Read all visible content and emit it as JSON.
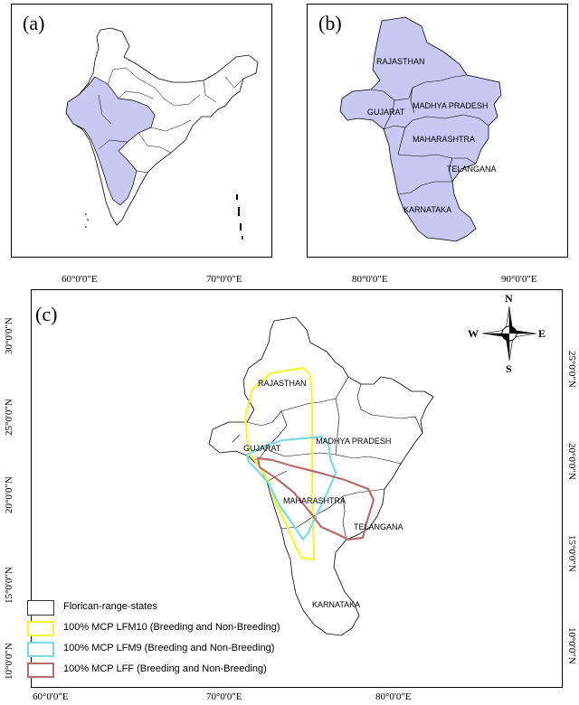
{
  "panels": {
    "a": {
      "label": "(a)"
    },
    "b": {
      "label": "(b)",
      "states": [
        "RAJASTHAN",
        "GUJARAT",
        "MADHYA PRADESH",
        "MAHARASHTRA",
        "TELANGANA",
        "KARNATAKA"
      ]
    },
    "c": {
      "label": "(c)",
      "states": [
        "RAJASTHAN",
        "GUJARAT",
        "MADHYA PRADESH",
        "MAHARASHTRA",
        "TELANGANA",
        "KARNATAKA"
      ]
    }
  },
  "axes_top": {
    "a_lon": [
      "60°0'0\"E",
      "70°0'0\"E"
    ],
    "b_lon": [
      "80°0'0\"E",
      "90°0'0\"E"
    ]
  },
  "axes_c": {
    "lon_bottom": [
      "60°0'0\"E",
      "70°0'0\"E",
      "80°0'0\"E"
    ],
    "lat_left": [
      "30°0'0\"N",
      "25°0'0\"N",
      "20°0'0\"N",
      "15°0'0\"N",
      "10°0'0\"N"
    ],
    "lat_right": [
      "25°0'0\"N",
      "20°0'0\"N",
      "15°0'0\"N",
      "10°0'0\"N"
    ]
  },
  "compass": {
    "n": "N",
    "s": "S",
    "e": "E",
    "w": "W"
  },
  "legend": [
    {
      "label": "Florican-range-states",
      "color": "#333333"
    },
    {
      "label": "100% MCP LFM10 (Breeding and Non-Breeding)",
      "color": "#f5f53a"
    },
    {
      "label": "100% MCP LFM9 (Breeding and Non-Breeding)",
      "color": "#7fd8e8"
    },
    {
      "label": "100% MCP LFF (Breeding and Non-Breeding)",
      "color": "#b86c6c"
    }
  ],
  "colors": {
    "range_fill": "#c9c8f2",
    "outline": "#000000"
  }
}
